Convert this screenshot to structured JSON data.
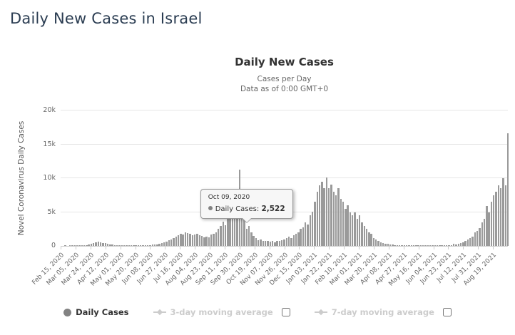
{
  "page": {
    "title": "Daily New Cases in Israel"
  },
  "chart": {
    "title": "Daily New Cases",
    "subtitle1": "Cases per Day",
    "subtitle2": "Data as of 0:00 GMT+0",
    "y_axis_title": "Novel Coronavirus Daily Cases"
  },
  "tooltip": {
    "date": "Oct 09, 2020",
    "series_label": "Daily Cases:",
    "value": "2,522"
  },
  "legend": {
    "items": [
      {
        "label": "Daily Cases",
        "state": "active",
        "checkbox": false
      },
      {
        "label": "3-day moving average",
        "state": "disabled",
        "checkbox": true
      },
      {
        "label": "7-day moving average",
        "state": "disabled",
        "checkbox": true
      }
    ]
  },
  "colors": {
    "title_text": "#2b3d52",
    "chart_title": "#333333",
    "subtitle": "#666666",
    "axis_label": "#666666",
    "axis_title": "#555555",
    "bar": "#9a9a9a",
    "marker": "#828282",
    "gridline": "#e6e6e6",
    "axis_line": "#cccccc",
    "tooltip_bg": "#f7f7f7",
    "tooltip_border": "#999999",
    "legend_active": "#333333",
    "legend_disabled": "#cccccc"
  },
  "chart_data": {
    "type": "bar",
    "title": "Daily New Cases",
    "series_name": "Daily Cases",
    "xlabel": "",
    "ylabel": "Novel Coronavirus Daily Cases",
    "ylim": [
      0,
      20000
    ],
    "grid": true,
    "legend_position": "bottom",
    "x_start": "Feb 15, 2020",
    "sample_interval_days": 3,
    "x_tick_interval_days": 19,
    "x_tick_labels": [
      "Feb 15, 2020",
      "Mar 05, 2020",
      "Mar 24, 2020",
      "Apr 12, 2020",
      "May 01, 2020",
      "May 20, 2020",
      "Jun 08, 2020",
      "Jun 27, 2020",
      "Jul 16, 2020",
      "Aug 04, 2020",
      "Aug 23, 2020",
      "Sep 11, 2020",
      "Sep 30, 2020",
      "Oct 19, 2020",
      "Nov 07, 2020",
      "Nov 26, 2020",
      "Dec 15, 2020",
      "Jan 03, 2021",
      "Jan 22, 2021",
      "Feb 10, 2021",
      "Mar 01, 2021",
      "Mar 20, 2021",
      "Apr 08, 2021",
      "Apr 27, 2021",
      "May 16, 2021",
      "Jun 04, 2021",
      "Jun 23, 2021",
      "Jul 12, 2021",
      "Jul 31, 2021",
      "Aug 19, 2021"
    ],
    "y_ticks": [
      0,
      5000,
      10000,
      15000,
      20000
    ],
    "y_tick_labels": [
      "0",
      "5k",
      "10k",
      "15k",
      "20k"
    ],
    "values": [
      0,
      0,
      1,
      0,
      2,
      3,
      5,
      10,
      25,
      40,
      70,
      120,
      180,
      270,
      380,
      500,
      620,
      560,
      470,
      400,
      340,
      260,
      200,
      140,
      90,
      60,
      45,
      30,
      20,
      14,
      10,
      12,
      16,
      28,
      45,
      65,
      85,
      105,
      130,
      160,
      200,
      260,
      320,
      420,
      480,
      620,
      810,
      950,
      1210,
      1320,
      1610,
      1820,
      1700,
      1980,
      1900,
      1760,
      1620,
      1710,
      1790,
      1610,
      1490,
      1230,
      1420,
      1310,
      1690,
      1810,
      2010,
      2480,
      2970,
      3540,
      3010,
      4480,
      5020,
      4010,
      6950,
      7990,
      11316,
      6080,
      4490,
      2522,
      2980,
      2040,
      1510,
      1190,
      830,
      910,
      720,
      790,
      690,
      610,
      720,
      520,
      790,
      710,
      890,
      990,
      1190,
      1390,
      1210,
      1590,
      1810,
      1990,
      2510,
      2790,
      3490,
      3180,
      4490,
      5010,
      6480,
      7980,
      8990,
      9480,
      8490,
      10120,
      8510,
      9010,
      7990,
      7480,
      8490,
      6990,
      6480,
      5510,
      5990,
      4990,
      4490,
      4980,
      3990,
      4480,
      3490,
      2990,
      2490,
      1990,
      1790,
      1190,
      990,
      690,
      490,
      390,
      290,
      340,
      190,
      240,
      140,
      115,
      95,
      80,
      65,
      50,
      40,
      34,
      28,
      16,
      20,
      14,
      10,
      12,
      8,
      5,
      9,
      7,
      14,
      11,
      26,
      42,
      98,
      122,
      148,
      292,
      248,
      352,
      452,
      508,
      748,
      902,
      1196,
      1404,
      1996,
      2196,
      2596,
      3496,
      3996,
      5898,
      4996,
      6496,
      7496,
      7996,
      8996,
      8496,
      9996,
      8996,
      16629
    ],
    "highlight": {
      "index": 79,
      "date": "Oct 09, 2020",
      "value": 2522
    }
  }
}
